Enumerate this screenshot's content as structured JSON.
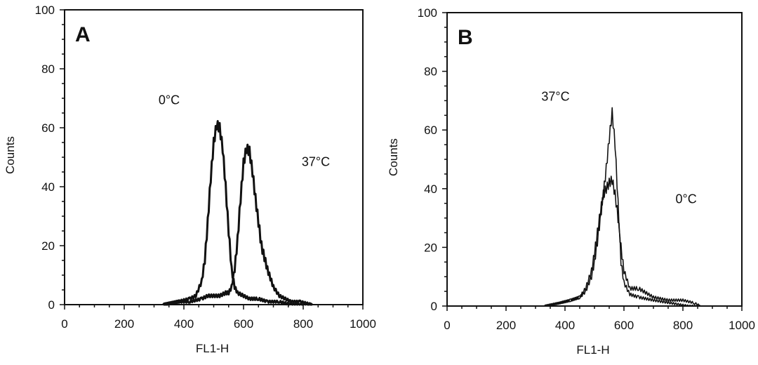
{
  "chart_data": [
    {
      "type": "line",
      "panel_label": "A",
      "xlabel": "FL1-H",
      "ylabel": "Counts",
      "xlim": [
        0,
        1000
      ],
      "ylim": [
        0,
        100
      ],
      "xticks": [
        0,
        200,
        400,
        600,
        800,
        1000
      ],
      "yticks": [
        0,
        20,
        40,
        60,
        80,
        100
      ],
      "grid": false,
      "series": [
        {
          "name": "0°C",
          "x": [
            330,
            380,
            420,
            440,
            460,
            470,
            480,
            490,
            500,
            510,
            520,
            530,
            540,
            550,
            560,
            570,
            580,
            600,
            620,
            650,
            680,
            720,
            760,
            800,
            830
          ],
          "y": [
            0,
            1,
            2,
            3,
            8,
            15,
            28,
            43,
            55,
            61,
            60,
            53,
            40,
            25,
            12,
            6,
            4,
            3,
            2,
            2,
            1,
            1,
            0,
            0,
            0
          ]
        },
        {
          "name": "37°C",
          "x": [
            330,
            380,
            420,
            460,
            480,
            500,
            520,
            540,
            550,
            560,
            570,
            580,
            590,
            600,
            610,
            620,
            630,
            640,
            650,
            660,
            670,
            680,
            690,
            700,
            720,
            740,
            760,
            790,
            830
          ],
          "y": [
            0,
            1,
            1,
            2,
            3,
            3,
            3,
            4,
            4,
            6,
            12,
            22,
            36,
            48,
            53,
            52,
            45,
            36,
            28,
            20,
            16,
            12,
            9,
            6,
            3,
            2,
            1,
            1,
            0
          ]
        }
      ],
      "annotations": [
        {
          "text": "0°C",
          "x": 315,
          "y": 68
        },
        {
          "text": "37°C",
          "x": 795,
          "y": 47
        }
      ]
    },
    {
      "type": "line",
      "panel_label": "B",
      "xlabel": "FL1-H",
      "ylabel": "Counts",
      "xlim": [
        0,
        1000
      ],
      "ylim": [
        0,
        100
      ],
      "xticks": [
        0,
        200,
        400,
        600,
        800,
        1000
      ],
      "yticks": [
        0,
        20,
        40,
        60,
        80,
        100
      ],
      "grid": false,
      "series": [
        {
          "name": "37°C",
          "x": [
            330,
            380,
            420,
            450,
            470,
            490,
            500,
            510,
            520,
            530,
            540,
            550,
            560,
            570,
            580,
            590,
            600,
            620,
            650,
            700,
            760,
            820,
            860
          ],
          "y": [
            0,
            1,
            2,
            3,
            5,
            10,
            15,
            22,
            30,
            38,
            47,
            57,
            66,
            55,
            35,
            15,
            8,
            4,
            3,
            2,
            1,
            0,
            0
          ]
        },
        {
          "name": "0°C",
          "x": [
            330,
            380,
            420,
            450,
            470,
            490,
            500,
            510,
            520,
            530,
            540,
            550,
            560,
            570,
            580,
            590,
            600,
            620,
            650,
            700,
            750,
            800,
            840,
            860
          ],
          "y": [
            0,
            1,
            2,
            3,
            6,
            12,
            18,
            25,
            32,
            38,
            40,
            42,
            43,
            38,
            30,
            20,
            12,
            6,
            6,
            3,
            2,
            2,
            1,
            0
          ]
        }
      ],
      "annotations": [
        {
          "text": "37°C",
          "x": 320,
          "y": 70
        },
        {
          "text": "0°C",
          "x": 775,
          "y": 35
        }
      ]
    }
  ]
}
